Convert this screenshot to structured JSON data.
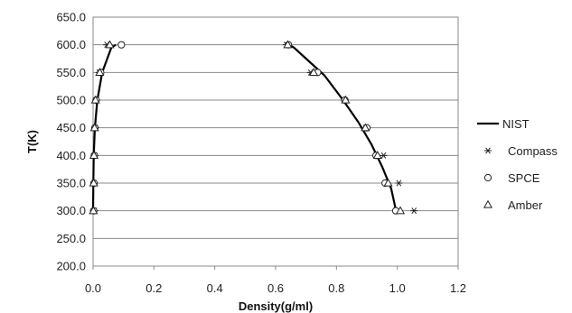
{
  "chart_data": {
    "type": "scatter",
    "xlabel": "Density(g/ml)",
    "ylabel": "T(K)",
    "xlim": [
      0.0,
      1.2
    ],
    "ylim": [
      200.0,
      650.0
    ],
    "xticks": [
      "0.0",
      "0.2",
      "0.4",
      "0.6",
      "0.8",
      "1.0",
      "1.2"
    ],
    "yticks": [
      "200.0",
      "250.0",
      "300.0",
      "350.0",
      "400.0",
      "450.0",
      "500.0",
      "550.0",
      "600.0",
      "650.0"
    ],
    "grid": "horizontal",
    "legend": "right",
    "series": [
      {
        "name": "NIST",
        "kind": "line",
        "color": "#000000",
        "branches": [
          {
            "x": [
              0.0,
              0.001,
              0.002,
              0.006,
              0.014,
              0.03,
              0.06,
              0.075
            ],
            "y": [
              300,
              350,
              400,
              450,
              500,
              550,
              595,
              600
            ]
          },
          {
            "x": [
              0.645,
              0.66,
              0.7,
              0.76,
              0.822,
              0.872,
              0.915,
              0.95,
              0.98,
              0.996
            ],
            "y": [
              600,
              595,
              575,
              545,
              500,
              460,
              420,
              380,
              340,
              300
            ]
          }
        ]
      },
      {
        "name": "Compass",
        "kind": "marker",
        "marker": "asterisk",
        "color": "#222222",
        "x": [
          0.005,
          0.004,
          0.006,
          0.008,
          0.012,
          0.02,
          0.045,
          1.055,
          1.005,
          0.955,
          0.895,
          0.825,
          0.715,
          0.635
        ],
        "y": [
          300,
          350,
          400,
          450,
          500,
          550,
          600,
          300,
          350,
          400,
          450,
          500,
          550,
          600
        ]
      },
      {
        "name": "SPCE",
        "kind": "marker",
        "marker": "circle",
        "color": "#222222",
        "x": [
          0.002,
          0.003,
          0.004,
          0.006,
          0.01,
          0.025,
          0.093,
          0.995,
          0.96,
          0.93,
          0.9,
          0.828,
          0.738,
          0.642
        ],
        "y": [
          300,
          350,
          400,
          450,
          500,
          550,
          600,
          300,
          350,
          400,
          450,
          500,
          550,
          600
        ]
      },
      {
        "name": "Amber",
        "kind": "marker",
        "marker": "triangle",
        "color": "#222222",
        "x": [
          0.001,
          0.002,
          0.003,
          0.005,
          0.008,
          0.022,
          0.055,
          1.01,
          0.97,
          0.935,
          0.895,
          0.83,
          0.725,
          0.64
        ],
        "y": [
          300,
          350,
          400,
          450,
          500,
          550,
          600,
          300,
          350,
          400,
          450,
          500,
          550,
          600
        ]
      }
    ]
  }
}
